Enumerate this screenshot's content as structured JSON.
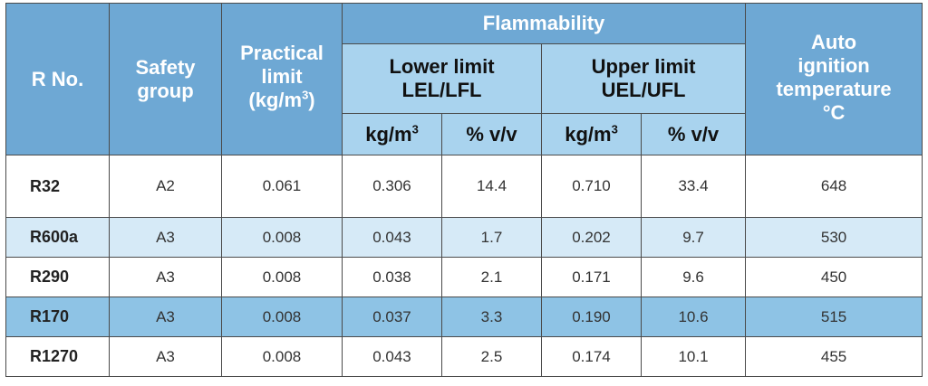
{
  "header": {
    "r_no": "R No.",
    "safety_group": [
      "Safety",
      "group"
    ],
    "practical_limit": [
      "Practical",
      "limit",
      "(kg/m",
      "3",
      ")"
    ],
    "flammability": "Flammability",
    "lower_limit": [
      "Lower limit",
      "LEL/LFL"
    ],
    "upper_limit": [
      "Upper limit",
      "UEL/UFL"
    ],
    "auto_ignition": [
      "Auto",
      "ignition",
      "temperature",
      "°C"
    ],
    "unit_kgm3": "kg/m",
    "unit_sup": "3",
    "unit_pct": "% v/v"
  },
  "rows": [
    {
      "r_no": "R32",
      "safety_group": "A2",
      "practical_limit": "0.061",
      "lel_kgm3": "0.306",
      "lel_pct": "14.4",
      "uel_kgm3": "0.710",
      "uel_pct": "33.4",
      "auto_ignition": "648"
    },
    {
      "r_no": "R600a",
      "safety_group": "A3",
      "practical_limit": "0.008",
      "lel_kgm3": "0.043",
      "lel_pct": "1.7",
      "uel_kgm3": "0.202",
      "uel_pct": "9.7",
      "auto_ignition": "530"
    },
    {
      "r_no": "R290",
      "safety_group": "A3",
      "practical_limit": "0.008",
      "lel_kgm3": "0.038",
      "lel_pct": "2.1",
      "uel_kgm3": "0.171",
      "uel_pct": "9.6",
      "auto_ignition": "450"
    },
    {
      "r_no": "R170",
      "safety_group": "A3",
      "practical_limit": "0.008",
      "lel_kgm3": "0.037",
      "lel_pct": "3.3",
      "uel_kgm3": "0.190",
      "uel_pct": "10.6",
      "auto_ignition": "515"
    },
    {
      "r_no": "R1270",
      "safety_group": "A3",
      "practical_limit": "0.008",
      "lel_kgm3": "0.043",
      "lel_pct": "2.5",
      "uel_kgm3": "0.174",
      "uel_pct": "10.1",
      "auto_ignition": "455"
    }
  ],
  "colors": {
    "header_dark": "#6ea8d4",
    "header_light": "#a9d3ee",
    "row_pale": "#d6eaf7",
    "row_mid": "#8ec3e5",
    "row_white": "#ffffff"
  }
}
